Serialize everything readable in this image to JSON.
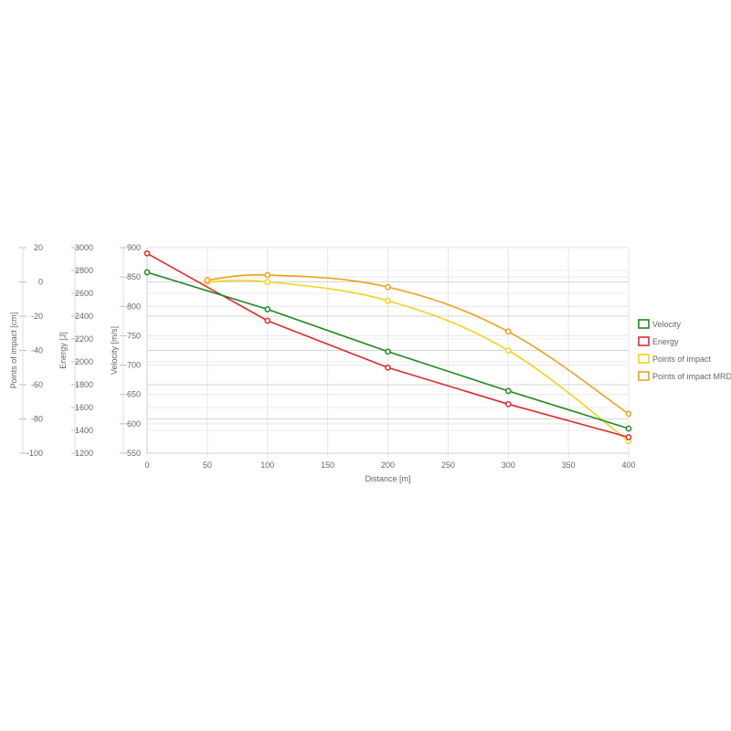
{
  "chart_data": {
    "type": "line",
    "x": [
      0,
      50,
      100,
      200,
      300,
      400
    ],
    "xlabel": "Distance [m]",
    "xlim": [
      0,
      400
    ],
    "xticks": [
      0,
      50,
      100,
      150,
      200,
      250,
      300,
      350,
      400
    ],
    "axes": {
      "velocity": {
        "label": "Velocity [m/s]",
        "range": [
          550,
          900
        ],
        "ticks": [
          550,
          600,
          650,
          700,
          750,
          800,
          850,
          900
        ]
      },
      "energy": {
        "label": "Energy [J]",
        "range": [
          1200,
          3000
        ],
        "ticks": [
          1200,
          1400,
          1600,
          1800,
          2000,
          2200,
          2400,
          2600,
          2800,
          3000
        ]
      },
      "poi": {
        "label": "Points of impact [cm]",
        "range": [
          -100,
          20
        ],
        "ticks": [
          -100,
          -80,
          -60,
          -40,
          -20,
          0,
          20
        ]
      }
    },
    "series": [
      {
        "name": "Velocity",
        "axis": "velocity",
        "color": "#1e8a1e",
        "smooth": false,
        "x": [
          0,
          100,
          200,
          300,
          400
        ],
        "values": [
          858,
          795,
          723,
          656,
          592
        ]
      },
      {
        "name": "Energy",
        "axis": "energy",
        "color": "#dd2a2a",
        "smooth": false,
        "x": [
          0,
          100,
          200,
          300,
          400
        ],
        "values": [
          2950,
          2360,
          1950,
          1630,
          1340
        ]
      },
      {
        "name": "Points of impact",
        "axis": "poi",
        "color": "#f5d31c",
        "smooth": true,
        "x": [
          50,
          100,
          200,
          300,
          400
        ],
        "values": [
          0,
          0,
          -11,
          -40,
          -93
        ]
      },
      {
        "name": "Points of impact MRD",
        "axis": "poi",
        "color": "#eda21a",
        "smooth": true,
        "x": [
          50,
          100,
          200,
          300,
          400
        ],
        "values": [
          1,
          4,
          -3,
          -29,
          -77
        ]
      }
    ],
    "legend_position": "right",
    "grid": true
  }
}
